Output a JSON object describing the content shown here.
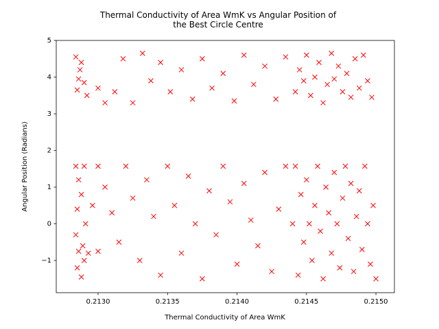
{
  "chart_data": {
    "type": "scatter",
    "title": "Thermal Conductivity of Area WmK vs Angular Position of\nthe Best Circle Centre",
    "x_label": "Thermal Conductivity of Area WmK",
    "y_label": "Angular Position (Radians)",
    "color": "#ff0000",
    "marker": "x",
    "grid": false,
    "xlim": [
      0.212699,
      0.215133
    ],
    "ylim": [
      -1.878,
      5
    ],
    "xticks": [
      {
        "value": 0.213,
        "label": "0.2130"
      },
      0.2135,
      {
        "value": 0.214,
        "label": "0.2140"
      },
      0.2145,
      {
        "value": 0.215,
        "label": "0.2150"
      }
    ],
    "yticks": [
      {
        "value": -1,
        "label": "−1"
      },
      0,
      1,
      2,
      3,
      4,
      5
    ],
    "x": [
      0.21284,
      0.21288,
      0.21286,
      0.2129,
      0.21285,
      0.21292,
      0.21287,
      0.21284,
      0.2129,
      0.21286,
      0.21288,
      0.21285,
      0.21291,
      0.21284,
      0.21289,
      0.21286,
      0.2129,
      0.21285,
      0.21288,
      0.21293,
      0.21296,
      0.213,
      0.213,
      0.21305,
      0.21312,
      0.21318,
      0.21325,
      0.21332,
      0.21338,
      0.21345,
      0.21352,
      0.2136,
      0.21368,
      0.21375,
      0.21382,
      0.2139,
      0.21398,
      0.21405,
      0.21412,
      0.2142,
      0.21428,
      0.21435,
      0.21442,
      0.21445,
      0.21448,
      0.2145,
      0.21453,
      0.21456,
      0.21459,
      0.21462,
      0.21465,
      0.21468,
      0.2147,
      0.21473,
      0.21476,
      0.21479,
      0.21482,
      0.21485,
      0.21488,
      0.21491,
      0.21494,
      0.21497,
      0.213,
      0.21305,
      0.2131,
      0.21315,
      0.2132,
      0.21325,
      0.2133,
      0.21335,
      0.2134,
      0.21345,
      0.2135,
      0.21355,
      0.2136,
      0.21365,
      0.2137,
      0.21375,
      0.2138,
      0.21385,
      0.2139,
      0.21395,
      0.214,
      0.21405,
      0.2141,
      0.21415,
      0.2142,
      0.21425,
      0.2143,
      0.21435,
      0.2144,
      0.21442,
      0.21444,
      0.21446,
      0.21448,
      0.2145,
      0.21452,
      0.21454,
      0.21456,
      0.21458,
      0.2146,
      0.21462,
      0.21464,
      0.21466,
      0.21468,
      0.2147,
      0.21472,
      0.21474,
      0.21476,
      0.21478,
      0.2148,
      0.21482,
      0.21484,
      0.21486,
      0.21488,
      0.2149,
      0.21492,
      0.21494,
      0.21496,
      0.21498,
      0.215
    ],
    "y": [
      4.55,
      4.4,
      3.95,
      3.85,
      3.65,
      3.5,
      4.2,
      1.57,
      1.57,
      1.2,
      0.8,
      0.4,
      0,
      -0.3,
      -0.6,
      -0.75,
      -1,
      -1.2,
      -1.45,
      -0.8,
      0.5,
      -0.75,
      3.7,
      3.3,
      3.6,
      4.5,
      3.3,
      4.65,
      3.9,
      4.4,
      3.6,
      4.2,
      3.4,
      4.5,
      3.7,
      4.1,
      3.35,
      4.6,
      3.8,
      4.3,
      3.4,
      4.55,
      3.6,
      4.2,
      3.9,
      4.6,
      3.5,
      4,
      4.4,
      3.3,
      3.8,
      4.65,
      3.95,
      4.3,
      3.6,
      4.1,
      3.45,
      4.5,
      3.7,
      4.6,
      3.9,
      3.45,
      1.57,
      1,
      0.3,
      -0.5,
      1.57,
      0.7,
      -1,
      1.2,
      0.2,
      -1.4,
      1.57,
      0.5,
      -0.8,
      1.3,
      0,
      -1.5,
      0.9,
      -0.3,
      1.57,
      0.6,
      -1.1,
      1.1,
      0.1,
      -0.6,
      1.4,
      -1.3,
      0.4,
      1.57,
      0,
      1.57,
      -1.4,
      0.8,
      -0.5,
      1.2,
      0,
      -1,
      0.5,
      1.57,
      -0.2,
      -1.5,
      1,
      0.3,
      -0.8,
      1.4,
      0,
      -1.2,
      0.7,
      1.57,
      -0.4,
      1.1,
      -1.3,
      0.2,
      0.9,
      -0.7,
      1.57,
      0,
      -1.1,
      0.5,
      -1.5
    ]
  }
}
